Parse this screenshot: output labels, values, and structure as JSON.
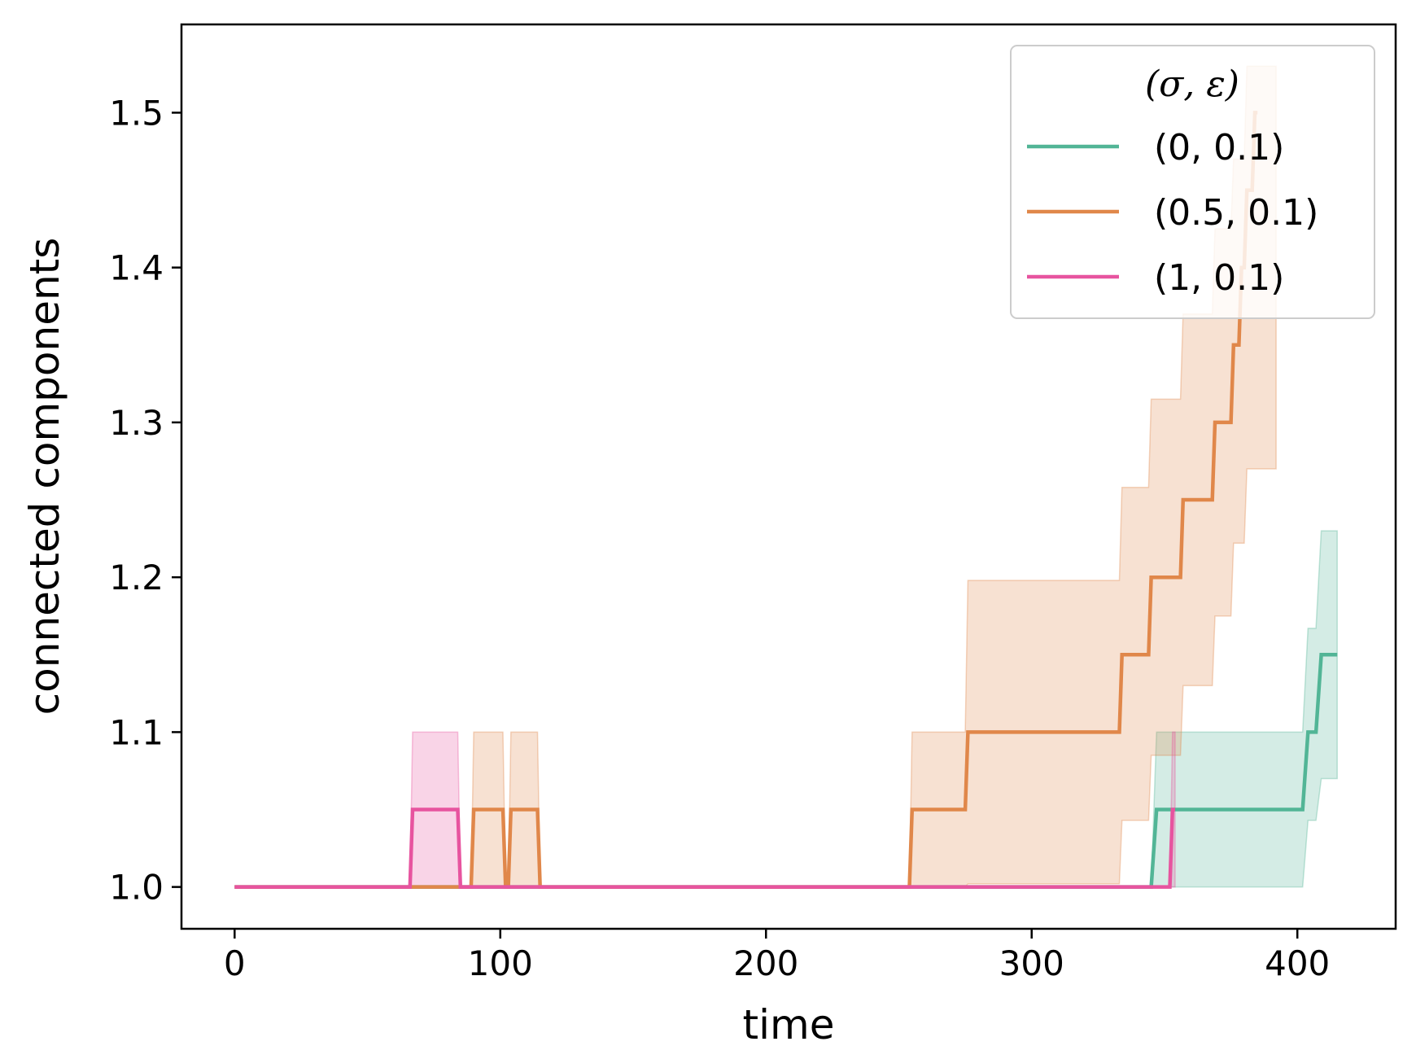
{
  "chart_data": {
    "type": "line",
    "title": "",
    "xlabel": "time",
    "ylabel": "connected components",
    "xlim": [
      -20,
      437
    ],
    "ylim": [
      0.973,
      1.557
    ],
    "xticks": [
      0,
      100,
      200,
      300,
      400
    ],
    "xtick_labels": [
      "0",
      "100",
      "200",
      "300",
      "400"
    ],
    "yticks": [
      1.0,
      1.1,
      1.2,
      1.3,
      1.4,
      1.5
    ],
    "ytick_labels": [
      "1.0",
      "1.1",
      "1.2",
      "1.3",
      "1.4",
      "1.5"
    ],
    "grid": false,
    "legend": {
      "title": "(σ, ε)",
      "placement": "top-right"
    },
    "series": [
      {
        "name": "(0, 0.1)",
        "color": "#52b596",
        "line": [
          [
            0,
            1.0
          ],
          [
            345,
            1.0
          ],
          [
            347,
            1.05
          ],
          [
            402,
            1.05
          ],
          [
            404,
            1.1
          ],
          [
            407,
            1.1
          ],
          [
            409,
            1.15
          ],
          [
            415,
            1.15
          ]
        ],
        "upper": [
          [
            0,
            1.0
          ],
          [
            345,
            1.0
          ],
          [
            347,
            1.1
          ],
          [
            402,
            1.1
          ],
          [
            404,
            1.167
          ],
          [
            407,
            1.167
          ],
          [
            409,
            1.23
          ],
          [
            415,
            1.23
          ]
        ],
        "lower": [
          [
            0,
            1.0
          ],
          [
            345,
            1.0
          ],
          [
            347,
            1.0
          ],
          [
            402,
            1.0
          ],
          [
            404,
            1.043
          ],
          [
            407,
            1.043
          ],
          [
            409,
            1.07
          ],
          [
            415,
            1.07
          ]
        ]
      },
      {
        "name": "(0.5, 0.1)",
        "color": "#e0874a",
        "line": [
          [
            0,
            1.0
          ],
          [
            89,
            1.0
          ],
          [
            90,
            1.05
          ],
          [
            101,
            1.05
          ],
          [
            102,
            1.0
          ],
          [
            103,
            1.0
          ],
          [
            104,
            1.05
          ],
          [
            114,
            1.05
          ],
          [
            115,
            1.0
          ],
          [
            254,
            1.0
          ],
          [
            255,
            1.05
          ],
          [
            275,
            1.05
          ],
          [
            276,
            1.1
          ],
          [
            333,
            1.1
          ],
          [
            334,
            1.15
          ],
          [
            344,
            1.15
          ],
          [
            345,
            1.2
          ],
          [
            356,
            1.2
          ],
          [
            357,
            1.25
          ],
          [
            368,
            1.25
          ],
          [
            369,
            1.3
          ],
          [
            375,
            1.3
          ],
          [
            376,
            1.35
          ],
          [
            378,
            1.35
          ],
          [
            379,
            1.4
          ],
          [
            380,
            1.4
          ],
          [
            381,
            1.45
          ],
          [
            383,
            1.45
          ],
          [
            384,
            1.5
          ],
          [
            385,
            1.5
          ]
        ],
        "upper": [
          [
            0,
            1.0
          ],
          [
            89,
            1.0
          ],
          [
            90,
            1.1
          ],
          [
            101,
            1.1
          ],
          [
            102,
            1.0
          ],
          [
            103,
            1.0
          ],
          [
            104,
            1.1
          ],
          [
            114,
            1.1
          ],
          [
            115,
            1.0
          ],
          [
            254,
            1.0
          ],
          [
            255,
            1.1
          ],
          [
            275,
            1.1
          ],
          [
            276,
            1.198
          ],
          [
            333,
            1.198
          ],
          [
            334,
            1.258
          ],
          [
            344,
            1.258
          ],
          [
            345,
            1.315
          ],
          [
            356,
            1.315
          ],
          [
            357,
            1.37
          ],
          [
            368,
            1.37
          ],
          [
            369,
            1.425
          ],
          [
            375,
            1.425
          ],
          [
            376,
            1.47
          ],
          [
            380,
            1.47
          ],
          [
            381,
            1.53
          ],
          [
            392,
            1.53
          ]
        ],
        "lower": [
          [
            0,
            1.0
          ],
          [
            254,
            1.0
          ],
          [
            275,
            1.0
          ],
          [
            276,
            1.002
          ],
          [
            333,
            1.002
          ],
          [
            334,
            1.043
          ],
          [
            344,
            1.043
          ],
          [
            345,
            1.085
          ],
          [
            356,
            1.085
          ],
          [
            357,
            1.13
          ],
          [
            368,
            1.13
          ],
          [
            369,
            1.175
          ],
          [
            375,
            1.175
          ],
          [
            376,
            1.222
          ],
          [
            380,
            1.222
          ],
          [
            381,
            1.27
          ],
          [
            392,
            1.27
          ]
        ]
      },
      {
        "name": "(1, 0.1)",
        "color": "#e7549f",
        "line": [
          [
            0,
            1.0
          ],
          [
            66,
            1.0
          ],
          [
            67,
            1.05
          ],
          [
            84,
            1.05
          ],
          [
            85,
            1.0
          ],
          [
            352,
            1.0
          ],
          [
            353,
            1.05
          ],
          [
            354,
            1.05
          ]
        ],
        "upper": [
          [
            0,
            1.0
          ],
          [
            66,
            1.0
          ],
          [
            67,
            1.1
          ],
          [
            84,
            1.1
          ],
          [
            85,
            1.0
          ],
          [
            352,
            1.0
          ],
          [
            353,
            1.1
          ],
          [
            354,
            1.1
          ]
        ],
        "lower": [
          [
            0,
            1.0
          ],
          [
            354,
            1.0
          ]
        ]
      }
    ]
  }
}
